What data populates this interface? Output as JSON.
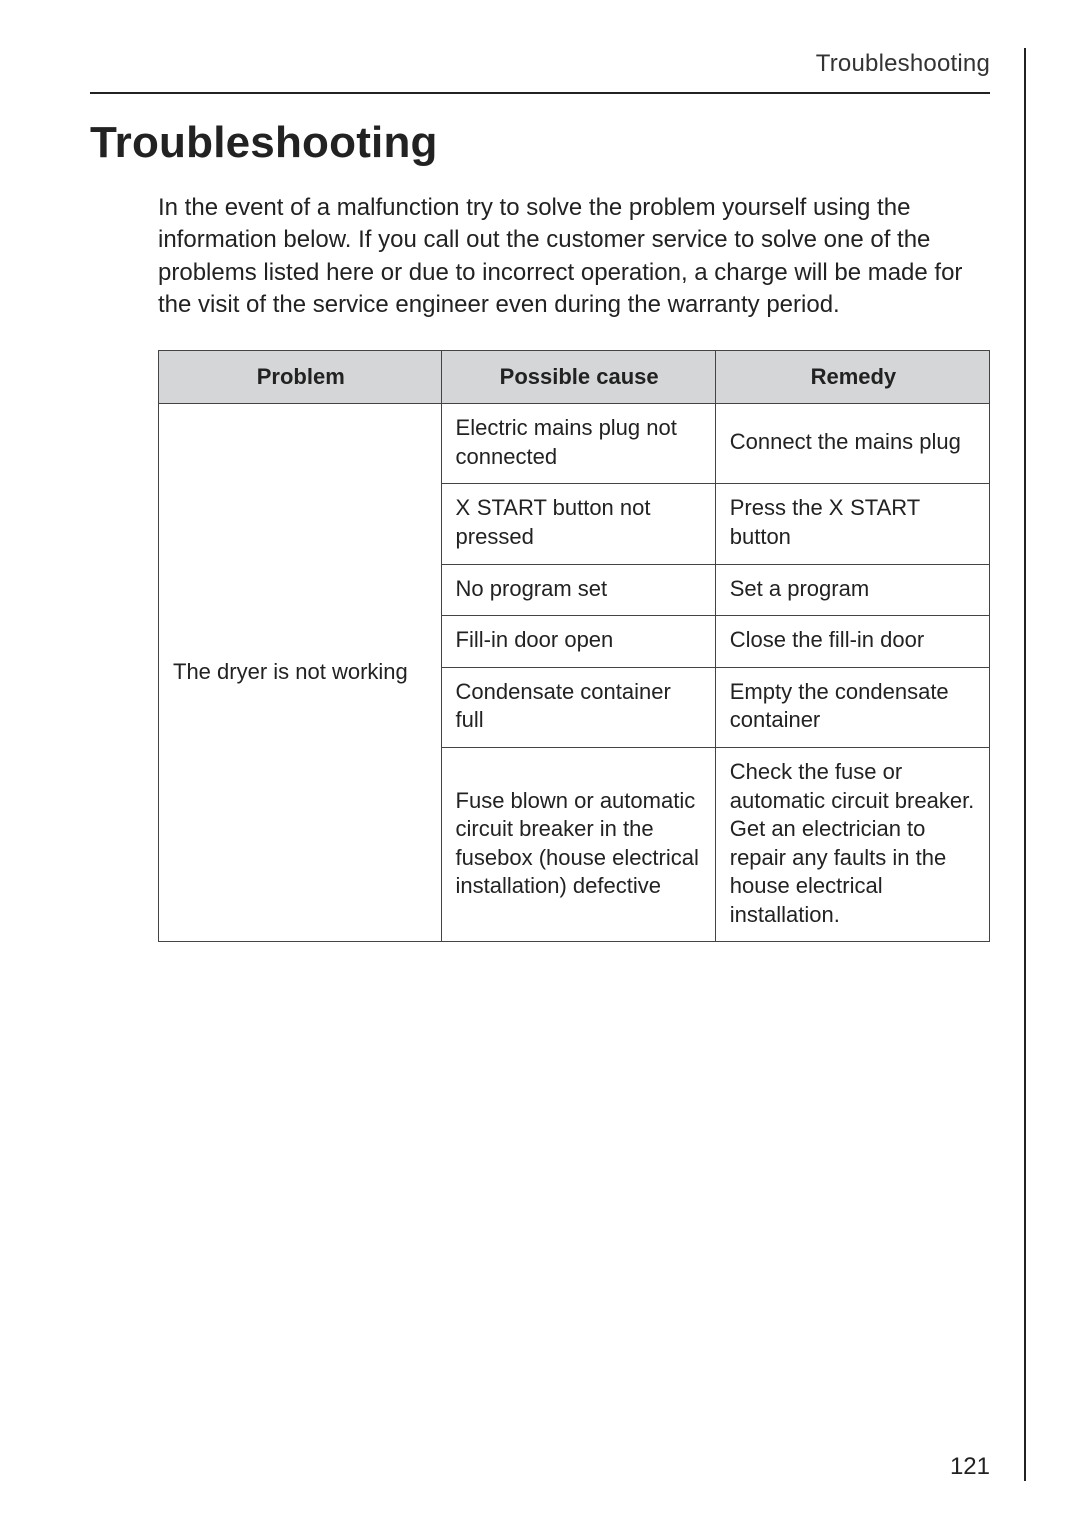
{
  "page": {
    "running_header": "Troubleshooting",
    "title": "Troubleshooting",
    "intro": "In the event of a malfunction try to solve the problem yourself using the information below. If you call out the customer service to solve one of the problems listed here or due to incorrect operation, a charge will be made for the visit of the service engineer even during the warranty period.",
    "page_number": "121"
  },
  "table": {
    "columns": [
      "Problem",
      "Possible cause",
      "Remedy"
    ],
    "column_widths_pct": [
      34,
      33,
      33
    ],
    "header_bg": "#d4d6d8",
    "border_color": "#444444",
    "cell_fontsize_pt": 16,
    "header_fontsize_pt": 16,
    "problem_label": "The dryer is not working",
    "rows": [
      {
        "cause": "Electric mains plug not connected",
        "remedy": "Connect the mains plug"
      },
      {
        "cause_prefix": "X",
        "cause_rest": " START button not pressed",
        "remedy_prefix": "Press the ",
        "remedy_sym": "X",
        "remedy_rest": " START button"
      },
      {
        "cause": "No program set",
        "remedy": "Set a program"
      },
      {
        "cause": "Fill-in door open",
        "remedy": "Close the fill-in door"
      },
      {
        "cause": "Condensate container full",
        "remedy": "Empty the condensate container"
      },
      {
        "cause": "Fuse blown or automatic circuit breaker in the fusebox (house electrical installation) defective",
        "remedy": "Check the fuse or automatic circuit breaker. Get an electrician to repair any faults in the house electrical installation."
      }
    ]
  },
  "style": {
    "page_bg": "#ffffff",
    "text_color": "#222222",
    "title_fontsize_pt": 33,
    "body_fontsize_pt": 18,
    "running_header_fontsize_pt": 18
  }
}
